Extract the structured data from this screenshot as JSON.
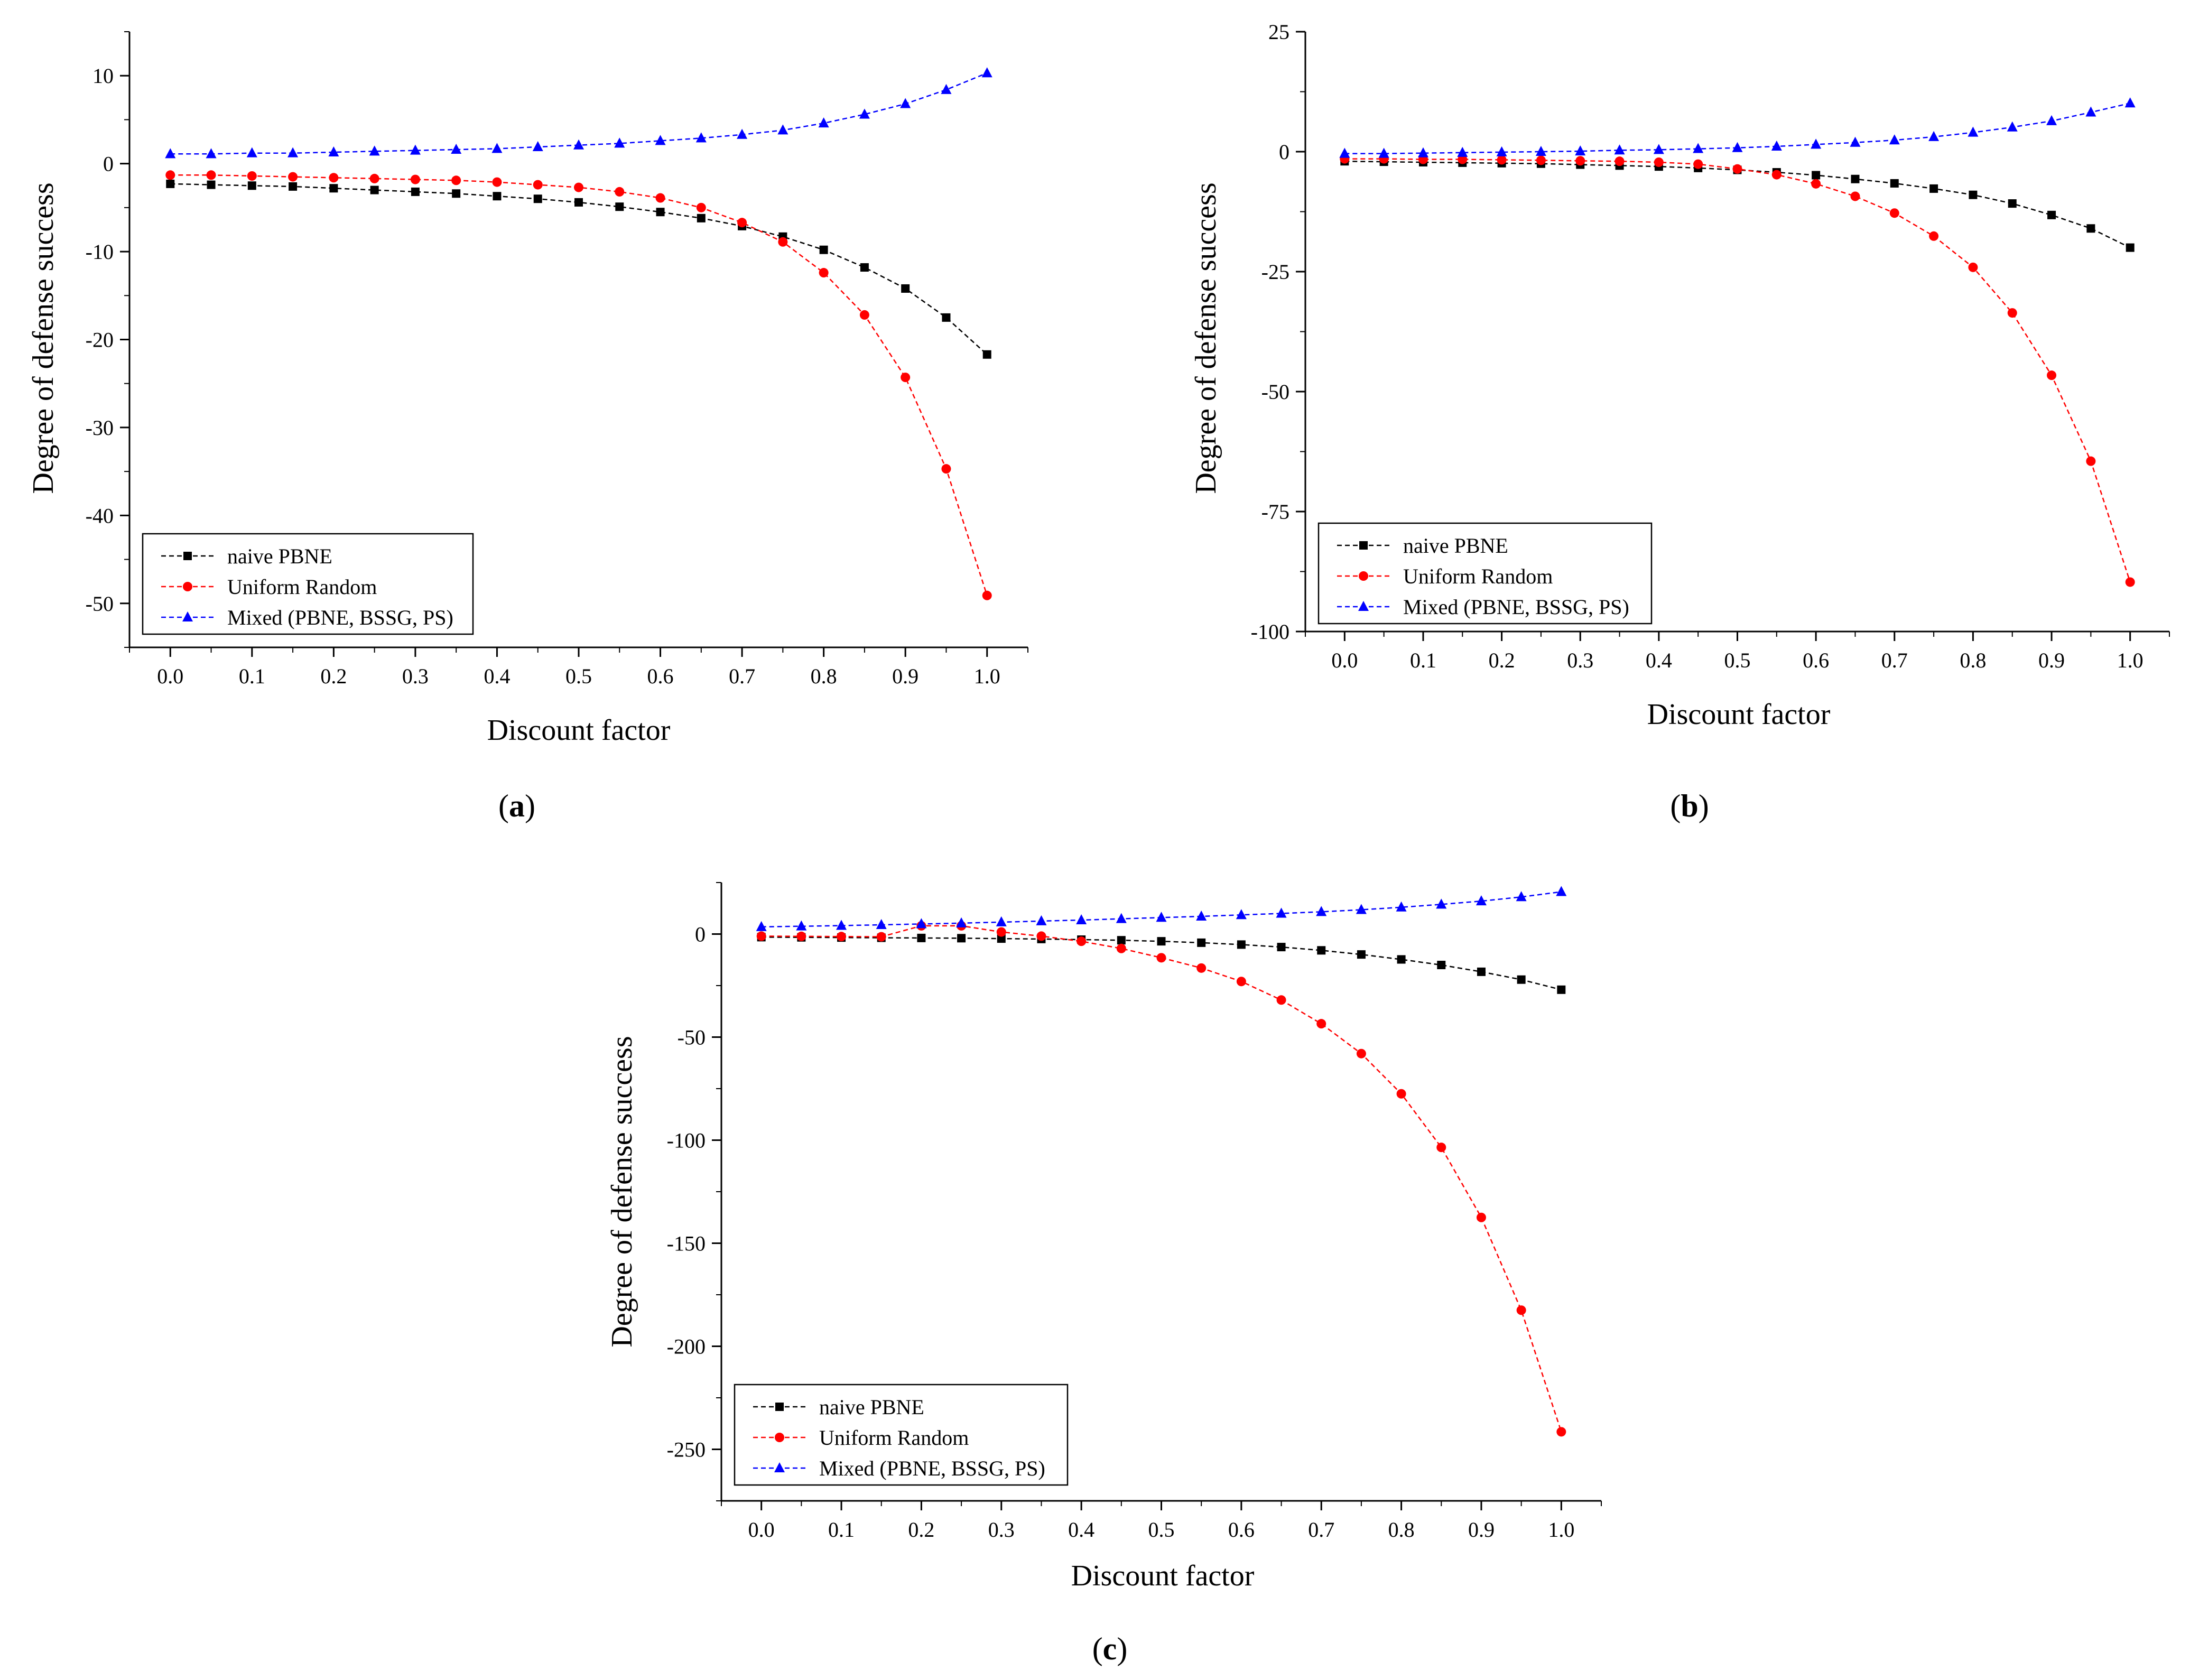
{
  "chart_data": [
    {
      "id": "a",
      "type": "line",
      "caption_letter": "a",
      "caption_open": "(",
      "caption_close": ")",
      "xlabel": "Discount factor",
      "ylabel": "Degree of defense success",
      "xlim": [
        -0.05,
        1.05
      ],
      "ylim": [
        -55,
        15
      ],
      "xticks": [
        0.0,
        0.1,
        0.2,
        0.3,
        0.4,
        0.5,
        0.6,
        0.7,
        0.8,
        0.9,
        1.0
      ],
      "xtick_labels": [
        "0.0",
        "0.1",
        "0.2",
        "0.3",
        "0.4",
        "0.5",
        "0.6",
        "0.7",
        "0.8",
        "0.9",
        "1.0"
      ],
      "yticks": [
        10,
        0,
        -10,
        -20,
        -30,
        -40,
        -50
      ],
      "ytick_labels": [
        "10",
        "0",
        "-10",
        "-20",
        "-30",
        "-40",
        "-50"
      ],
      "x": [
        0.0,
        0.05,
        0.1,
        0.15,
        0.2,
        0.25,
        0.3,
        0.35,
        0.4,
        0.45,
        0.5,
        0.55,
        0.6,
        0.65,
        0.7,
        0.75,
        0.8,
        0.85,
        0.9,
        0.95,
        1.0
      ],
      "series": [
        {
          "name": "naive PBNE",
          "color": "#000000",
          "marker": "square",
          "values": [
            -2.3,
            -2.4,
            -2.5,
            -2.6,
            -2.8,
            -3.0,
            -3.2,
            -3.4,
            -3.7,
            -4.0,
            -4.4,
            -4.9,
            -5.5,
            -6.2,
            -7.1,
            -8.3,
            -9.8,
            -11.8,
            -14.2,
            -17.5,
            -21.7
          ]
        },
        {
          "name": "Uniform Random",
          "color": "#ff0000",
          "marker": "circle",
          "values": [
            -1.3,
            -1.3,
            -1.4,
            -1.5,
            -1.6,
            -1.7,
            -1.8,
            -1.9,
            -2.1,
            -2.4,
            -2.7,
            -3.2,
            -3.9,
            -5.0,
            -6.7,
            -8.9,
            -12.4,
            -17.2,
            -24.3,
            -34.7,
            -49.1
          ]
        },
        {
          "name": "Mixed (PBNE, BSSG, PS)",
          "color": "#0000ff",
          "marker": "triangle",
          "values": [
            1.1,
            1.1,
            1.2,
            1.2,
            1.3,
            1.4,
            1.5,
            1.6,
            1.7,
            1.9,
            2.1,
            2.3,
            2.6,
            2.9,
            3.3,
            3.8,
            4.6,
            5.6,
            6.8,
            8.4,
            10.3
          ]
        }
      ],
      "legend_position": "bottom-left"
    },
    {
      "id": "b",
      "type": "line",
      "caption_letter": "b",
      "caption_open": "(",
      "caption_close": ")",
      "xlabel": "Discount factor",
      "ylabel": "Degree of defense success",
      "xlim": [
        -0.05,
        1.05
      ],
      "ylim": [
        -100,
        25
      ],
      "xticks": [
        0.0,
        0.1,
        0.2,
        0.3,
        0.4,
        0.5,
        0.6,
        0.7,
        0.8,
        0.9,
        1.0
      ],
      "xtick_labels": [
        "0.0",
        "0.1",
        "0.2",
        "0.3",
        "0.4",
        "0.5",
        "0.6",
        "0.7",
        "0.8",
        "0.9",
        "1.0"
      ],
      "yticks": [
        25,
        0,
        -25,
        -50,
        -75,
        -100
      ],
      "ytick_labels": [
        "25",
        "0",
        "-25",
        "-50",
        "-75",
        "-100"
      ],
      "x": [
        0.0,
        0.05,
        0.1,
        0.15,
        0.2,
        0.25,
        0.3,
        0.35,
        0.4,
        0.45,
        0.5,
        0.55,
        0.6,
        0.65,
        0.7,
        0.75,
        0.8,
        0.85,
        0.9,
        0.95,
        1.0
      ],
      "series": [
        {
          "name": "naive PBNE",
          "color": "#000000",
          "marker": "square",
          "values": [
            -2.0,
            -2.1,
            -2.2,
            -2.3,
            -2.4,
            -2.5,
            -2.7,
            -2.9,
            -3.1,
            -3.4,
            -3.8,
            -4.3,
            -4.9,
            -5.7,
            -6.6,
            -7.7,
            -9.0,
            -10.8,
            -13.2,
            -16.0,
            -20.0
          ]
        },
        {
          "name": "Uniform Random",
          "color": "#ff0000",
          "marker": "circle",
          "values": [
            -1.5,
            -1.5,
            -1.6,
            -1.6,
            -1.7,
            -1.8,
            -1.9,
            -2.0,
            -2.2,
            -2.6,
            -3.6,
            -4.8,
            -6.7,
            -9.3,
            -12.8,
            -17.6,
            -24.1,
            -33.6,
            -46.6,
            -64.5,
            -89.7
          ]
        },
        {
          "name": "Mixed (PBNE, BSSG, PS)",
          "color": "#0000ff",
          "marker": "triangle",
          "values": [
            -0.4,
            -0.4,
            -0.3,
            -0.2,
            -0.1,
            0.0,
            0.1,
            0.3,
            0.4,
            0.6,
            0.8,
            1.1,
            1.5,
            1.9,
            2.4,
            3.1,
            4.0,
            5.1,
            6.4,
            8.2,
            10.1
          ]
        }
      ],
      "legend_position": "bottom-left"
    },
    {
      "id": "c",
      "type": "line",
      "caption_letter": "c",
      "caption_open": "(",
      "caption_close": ")",
      "xlabel": "Discount factor",
      "ylabel": "Degree of defense success",
      "xlim": [
        -0.05,
        1.05
      ],
      "ylim": [
        -275,
        25
      ],
      "xticks": [
        0.0,
        0.1,
        0.2,
        0.3,
        0.4,
        0.5,
        0.6,
        0.7,
        0.8,
        0.9,
        1.0
      ],
      "xtick_labels": [
        "0.0",
        "0.1",
        "0.2",
        "0.3",
        "0.4",
        "0.5",
        "0.6",
        "0.7",
        "0.8",
        "0.9",
        "1.0"
      ],
      "yticks": [
        0,
        -50,
        -100,
        -150,
        -200,
        -250
      ],
      "ytick_labels": [
        "0",
        "-50",
        "-100",
        "-150",
        "-200",
        "-250"
      ],
      "x": [
        0.0,
        0.05,
        0.1,
        0.15,
        0.2,
        0.25,
        0.3,
        0.35,
        0.4,
        0.45,
        0.5,
        0.55,
        0.6,
        0.65,
        0.7,
        0.75,
        0.8,
        0.85,
        0.9,
        0.95,
        1.0
      ],
      "series": [
        {
          "name": "naive PBNE",
          "color": "#000000",
          "marker": "square",
          "values": [
            -1.5,
            -1.6,
            -1.7,
            -1.8,
            -1.9,
            -2.0,
            -2.2,
            -2.4,
            -2.7,
            -3.0,
            -3.5,
            -4.2,
            -5.1,
            -6.3,
            -7.9,
            -9.9,
            -12.3,
            -15.0,
            -18.3,
            -22.1,
            -27.0
          ]
        },
        {
          "name": "Uniform Random",
          "color": "#ff0000",
          "marker": "circle",
          "values": [
            -1.0,
            -1.1,
            -1.2,
            -1.3,
            4.0,
            4.0,
            1.0,
            -1.0,
            -3.5,
            -7.0,
            -11.5,
            -16.5,
            -23.0,
            -32.0,
            -43.5,
            -58.0,
            -77.5,
            -103.5,
            -137.5,
            -182.5,
            -241.5
          ]
        },
        {
          "name": "Mixed (PBNE, BSSG, PS)",
          "color": "#0000ff",
          "marker": "triangle",
          "values": [
            3.5,
            3.8,
            4.1,
            4.5,
            4.9,
            5.3,
            5.8,
            6.3,
            6.8,
            7.4,
            8.0,
            8.6,
            9.3,
            10.0,
            10.8,
            11.8,
            13.0,
            14.4,
            16.0,
            18.0,
            20.5
          ]
        }
      ],
      "legend_position": "bottom-left"
    }
  ]
}
